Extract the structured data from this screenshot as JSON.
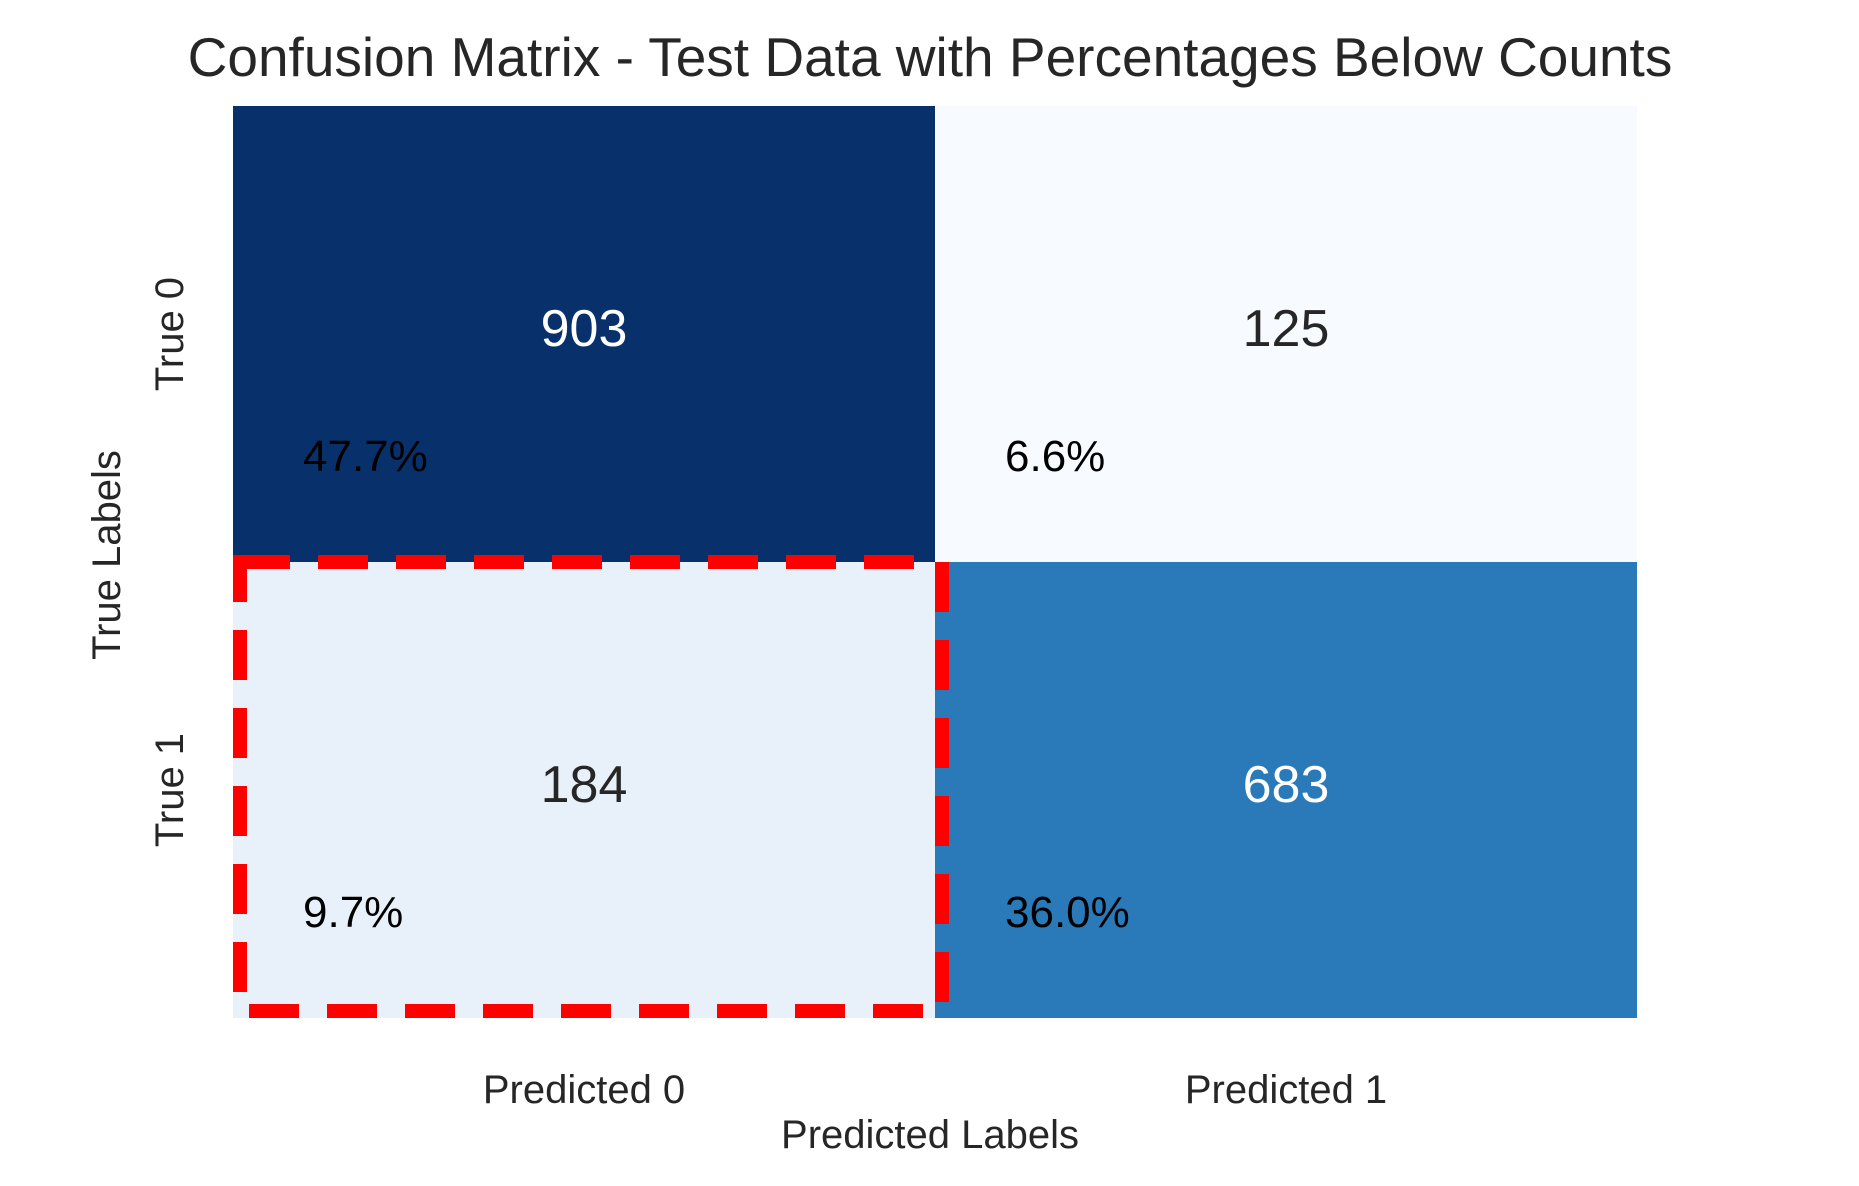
{
  "chart_data": {
    "type": "heatmap",
    "title": "Confusion Matrix - Test Data with Percentages Below Counts",
    "xlabel": "Predicted Labels",
    "ylabel": "True Labels",
    "x_categories": [
      "Predicted 0",
      "Predicted 1"
    ],
    "y_categories": [
      "True 0",
      "True 1"
    ],
    "counts": [
      [
        903,
        125
      ],
      [
        184,
        683
      ]
    ],
    "percentages": [
      [
        "47.7%",
        "6.6%"
      ],
      [
        "9.7%",
        "36.0%"
      ]
    ],
    "colormap": "Blues",
    "colorbar": false,
    "highlight": {
      "row": 1,
      "col": 0,
      "style": "dashed",
      "color": "#ff0000"
    }
  }
}
